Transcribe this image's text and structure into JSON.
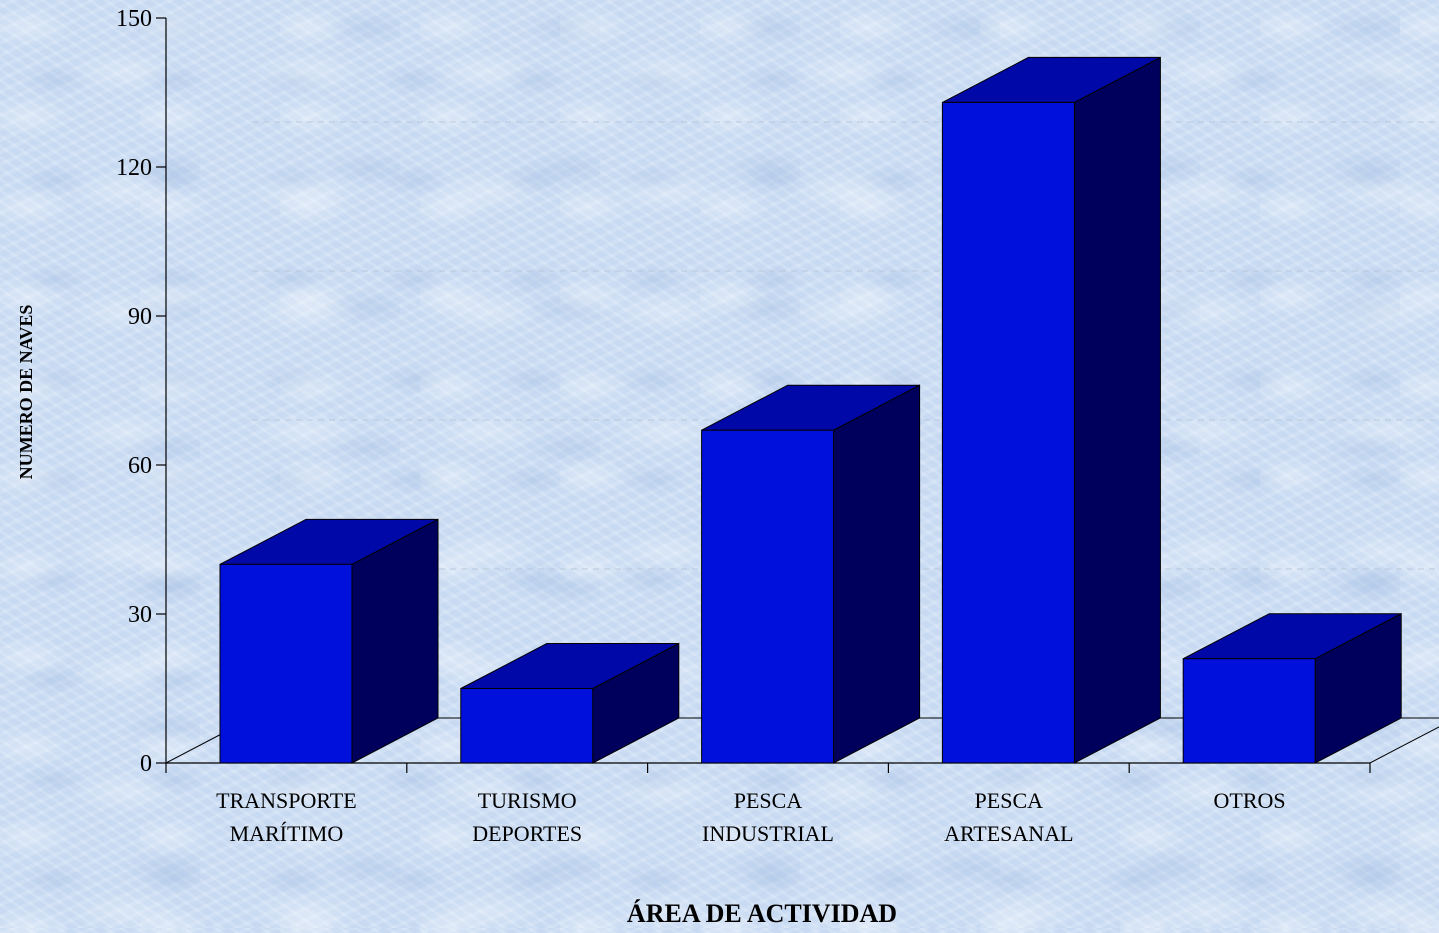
{
  "chart_data": {
    "type": "bar",
    "title": "",
    "xlabel": "ÁREA DE ACTIVIDAD",
    "ylabel": "NUMERO DE NAVES",
    "categories": [
      [
        "TRANSPORTE",
        "MARÍTIMO"
      ],
      [
        "TURISMO",
        "DEPORTES"
      ],
      [
        "PESCA",
        "INDUSTRIAL"
      ],
      [
        "PESCA",
        "ARTESANAL"
      ],
      [
        "OTROS"
      ]
    ],
    "values": [
      40,
      15,
      67,
      133,
      21
    ],
    "ylim": [
      0,
      150
    ],
    "yticks": [
      "0",
      "30",
      "60",
      "90",
      "120",
      "150"
    ],
    "grid": true,
    "three_d": true,
    "colors": {
      "bar_front": "#0010dc",
      "bar_top": "#0008a8",
      "bar_side": "#00005c",
      "outline": "#000000"
    }
  }
}
